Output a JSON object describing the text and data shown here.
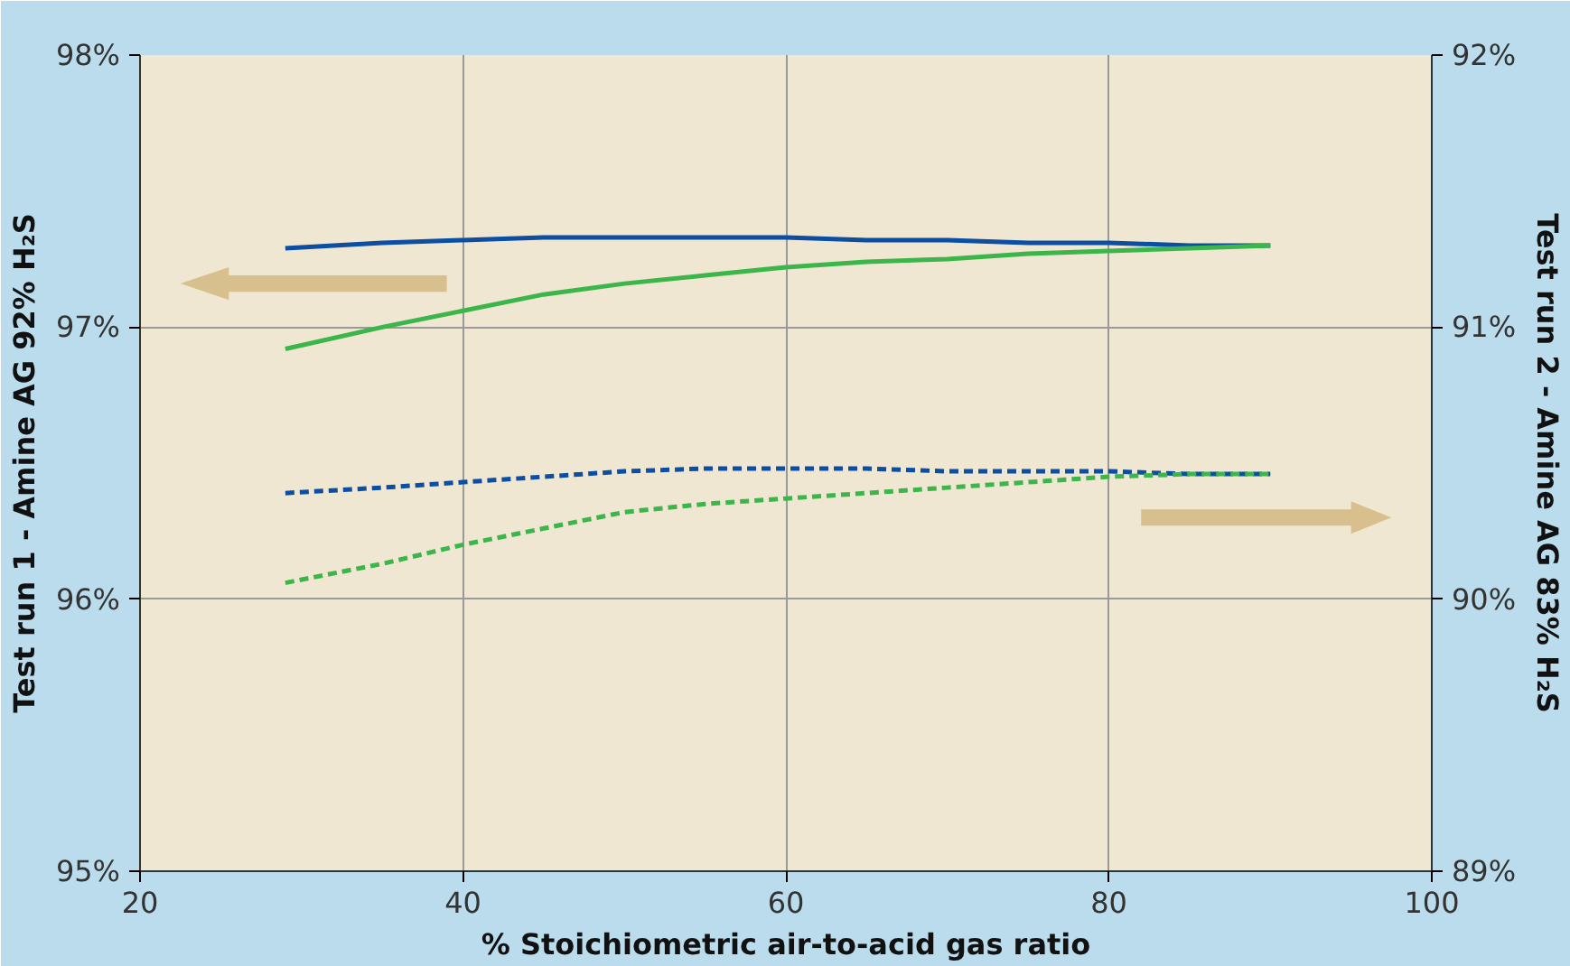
{
  "chart_data": {
    "type": "line",
    "xlabel": "% Stoichiometric air-to-acid gas ratio",
    "ylabel": "Test run 1 - Amine AG 92% H₂S",
    "y2label": "Test run 2 - Amine AG 83% H₂S",
    "xlim": [
      20,
      100
    ],
    "xticks": [
      20,
      40,
      60,
      80,
      100
    ],
    "ylim": [
      95,
      98
    ],
    "yticks": [
      {
        "value": 95,
        "label": "95%"
      },
      {
        "value": 96,
        "label": "96%"
      },
      {
        "value": 97,
        "label": "97%"
      },
      {
        "value": 98,
        "label": "98%"
      }
    ],
    "y2lim": [
      89,
      92
    ],
    "y2ticks": [
      {
        "value": 89,
        "label": "89%"
      },
      {
        "value": 90,
        "label": "90%"
      },
      {
        "value": 91,
        "label": "91%"
      },
      {
        "value": 92,
        "label": "92%"
      }
    ],
    "grid": true,
    "series": [
      {
        "color": "#0b4ea2",
        "line_style": "solid",
        "x": [
          29,
          35,
          40,
          45,
          50,
          55,
          60,
          65,
          70,
          75,
          80,
          85,
          90
        ],
        "values": [
          97.29,
          97.31,
          97.32,
          97.33,
          97.33,
          97.33,
          97.33,
          97.32,
          97.32,
          97.31,
          97.31,
          97.3,
          97.3
        ]
      },
      {
        "color": "#3cb54a",
        "line_style": "solid",
        "x": [
          29,
          35,
          40,
          45,
          50,
          55,
          60,
          65,
          70,
          75,
          80,
          85,
          90
        ],
        "values": [
          96.92,
          97.0,
          97.06,
          97.12,
          97.16,
          97.19,
          97.22,
          97.24,
          97.25,
          97.27,
          97.28,
          97.29,
          97.3
        ]
      },
      {
        "color": "#0b4ea2",
        "line_style": "dashed",
        "axis": "y2",
        "x": [
          29,
          35,
          40,
          45,
          50,
          55,
          60,
          65,
          70,
          75,
          80,
          85,
          90
        ],
        "values": [
          90.39,
          90.41,
          90.43,
          90.45,
          90.47,
          90.48,
          90.48,
          90.48,
          90.47,
          90.47,
          90.47,
          90.46,
          90.46
        ]
      },
      {
        "color": "#3cb54a",
        "line_style": "dashed",
        "axis": "y2",
        "x": [
          29,
          35,
          40,
          45,
          50,
          55,
          60,
          65,
          70,
          75,
          80,
          85,
          90
        ],
        "values": [
          90.06,
          90.13,
          90.2,
          90.26,
          90.32,
          90.35,
          90.37,
          90.39,
          90.41,
          90.43,
          90.45,
          90.46,
          90.46
        ]
      }
    ]
  }
}
